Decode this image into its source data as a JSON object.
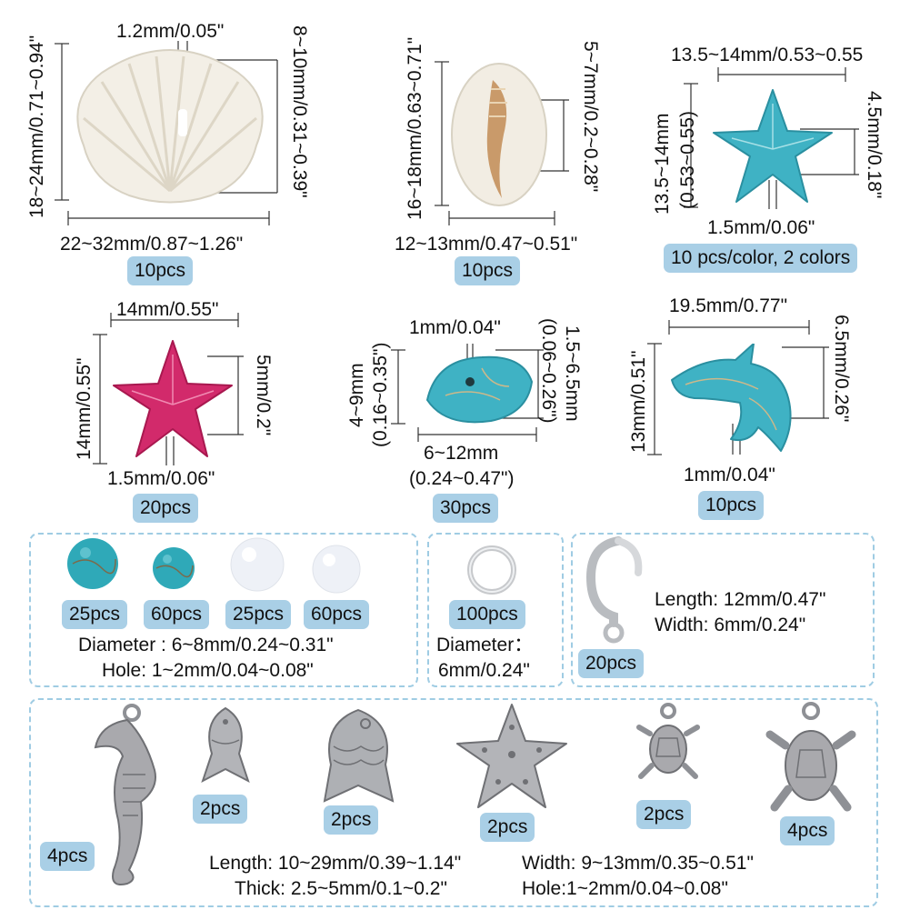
{
  "row1": {
    "shell": {
      "hole": "1.2mm/0.05\"",
      "height_left": "18~24mm/0.71~0.94\"",
      "height_right": "8~10mm/0.31~0.39\"",
      "width": "22~32mm/0.87~1.26\"",
      "qty": "10pcs"
    },
    "cowrie": {
      "height_left": "16~18mm/0.63~0.71\"",
      "height_right": "5~7mm/0.2~0.28\"",
      "width": "12~13mm/0.47~0.51\"",
      "qty": "10pcs"
    },
    "blue_star": {
      "width": "13.5~14mm/0.53~0.55",
      "height_left_1": "13.5~14mm",
      "height_left_2": "(0.53~0.55)",
      "height_right": "4.5mm/0.18\"",
      "hole": "1.5mm/0.06\"",
      "qty": "10 pcs/color, 2 colors"
    }
  },
  "row2": {
    "pink_star": {
      "width": "14mm/0.55\"",
      "height_left": "14mm/0.55\"",
      "height_right": "5mm/0.2\"",
      "hole": "1.5mm/0.06\"",
      "qty": "20pcs"
    },
    "chip": {
      "hole": "1mm/0.04\"",
      "height_left_1": "4~9mm",
      "height_left_2": "(0.16~0.35\")",
      "height_right_1": "1.5~6.5mm",
      "height_right_2": "(0.06~0.26\")",
      "width_1": "6~12mm",
      "width_2": "(0.24~0.47\")",
      "qty": "30pcs"
    },
    "dolphin": {
      "width": "19.5mm/0.77\"",
      "height_left": "13mm/0.51\"",
      "height_right": "6.5mm/0.26\"",
      "hole": "1mm/0.04\"",
      "qty": "10pcs"
    }
  },
  "row3": {
    "beads": {
      "qty": [
        "25pcs",
        "60pcs",
        "25pcs",
        "60pcs"
      ],
      "diameter": "Diameter : 6~8mm/0.24~0.31\"",
      "hole": "Hole: 1~2mm/0.04~0.08\""
    },
    "jump_ring": {
      "qty": "100pcs",
      "diameter_1": "Diameter：",
      "diameter_2": "6mm/0.24\""
    },
    "clasp": {
      "length": "Length: 12mm/0.47\"",
      "width": "Width: 6mm/0.24\"",
      "qty": "20pcs"
    }
  },
  "row4": {
    "qty": [
      "4pcs",
      "2pcs",
      "2pcs",
      "2pcs",
      "2pcs",
      "4pcs"
    ],
    "length": "Length: 10~29mm/0.39~1.14\"",
    "width": "Width: 9~13mm/0.35~0.51\"",
    "thick": "Thick: 2.5~5mm/0.1~0.2\"",
    "hole": "Hole:1~2mm/0.04~0.08\""
  },
  "colors": {
    "badge": "#a9cfe6",
    "dash": "#9fcce3",
    "turquoise": "#3fb2c4",
    "pink": "#d22a6b",
    "shell": "#f3efe6",
    "silver": "#a9a9ad"
  }
}
